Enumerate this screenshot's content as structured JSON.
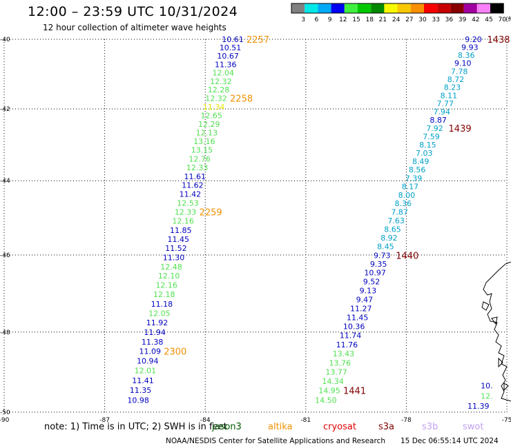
{
  "title": "12:00 – 23:59 UTC 10/31/2024",
  "subtitle": "12 hour collection of altimeter wave heights",
  "colorbar": {
    "unit": "(ft)",
    "ticks": [
      "3",
      "6",
      "9",
      "12",
      "15",
      "18",
      "21",
      "24",
      "27",
      "30",
      "33",
      "36",
      "39",
      "42",
      "45",
      "70"
    ],
    "colors": [
      "#808080",
      "#00e8e8",
      "#00a8f8",
      "#0000f0",
      "#40f040",
      "#00c800",
      "#008800",
      "#f8f800",
      "#f8c800",
      "#f89000",
      "#f80000",
      "#c80000",
      "#880000",
      "#a000a0",
      "#f880f8",
      "#000000"
    ]
  },
  "colors": {
    "dark_blue": "#0000c0",
    "light_green": "#50e050",
    "cyan": "#00a0c8",
    "yellow": "#e8e800",
    "orange": "#f09000",
    "maroon": "#800000",
    "dark_green": "#006000",
    "red": "#e00000",
    "lavender": "#c0a0f0"
  },
  "chart_data": {
    "type": "scatter",
    "xlim": [
      -90,
      -75
    ],
    "ylim": [
      -50,
      -40
    ],
    "x_ticks": [
      "-90",
      "-87",
      "-84",
      "-81",
      "-78",
      "-75"
    ],
    "y_ticks": [
      "-40",
      "-42",
      "-44",
      "-46",
      "-48",
      "-50"
    ],
    "grid": true,
    "tracks": [
      {
        "lon_start": -83.18,
        "lon_end": -86.0,
        "lat_start": -40.0,
        "lat_end": -49.7,
        "values": [
          "10.61",
          "10.51",
          "10.67",
          "11.36",
          "12.04",
          "12.32",
          "12.28",
          "12.32",
          "11.34",
          "12.65",
          "12.29",
          "12.13",
          "13.16",
          "13.15",
          "12.76",
          "12.33",
          "11.61",
          "11.62",
          "11.42",
          "12.53",
          "12.33",
          "12.16",
          "11.85",
          "11.45",
          "11.52",
          "11.30",
          "12.48",
          "12.10",
          "12.16",
          "12.18",
          "11.18",
          "12.05",
          "11.92",
          "11.94",
          "11.38",
          "11.09",
          "10.94",
          "12.01",
          "11.41",
          "11.35",
          "10.98"
        ],
        "colors": [
          "dark_blue",
          "dark_blue",
          "dark_blue",
          "dark_blue",
          "light_green",
          "light_green",
          "light_green",
          "light_green",
          "yellow",
          "light_green",
          "light_green",
          "light_green",
          "light_green",
          "light_green",
          "light_green",
          "light_green",
          "dark_blue",
          "dark_blue",
          "dark_blue",
          "light_green",
          "light_green",
          "light_green",
          "dark_blue",
          "dark_blue",
          "dark_blue",
          "dark_blue",
          "light_green",
          "light_green",
          "light_green",
          "light_green",
          "dark_blue",
          "light_green",
          "dark_blue",
          "dark_blue",
          "dark_blue",
          "dark_blue",
          "dark_blue",
          "light_green",
          "dark_blue",
          "dark_blue",
          "dark_blue"
        ],
        "time_labels": [
          {
            "text": "2257",
            "index": 0
          },
          {
            "text": "2258",
            "index": 7
          },
          {
            "text": "2259",
            "index": 20
          },
          {
            "text": "2300",
            "index": 35
          }
        ],
        "time_color": "orange"
      },
      {
        "lon_start": -76.0,
        "lon_end": -80.4,
        "lat_start": -40.0,
        "lat_end": -49.7,
        "values": [
          "9.20",
          "9.93",
          "8.36",
          "9.10",
          "7.78",
          "8.72",
          "8.23",
          "8.11",
          "7.77",
          "7.94",
          "8.87",
          "7.92",
          "7.59",
          "8.15",
          "7.03",
          "8.49",
          "8.56",
          "7.39",
          "8.17",
          "8.00",
          "8.36",
          "7.87",
          "7.63",
          "8.65",
          "8.92",
          "8.45",
          "9.73",
          "9.35",
          "10.97",
          "9.52",
          "9.13",
          "9.47",
          "11.27",
          "11.45",
          "10.36",
          "11.74",
          "11.76",
          "13.43",
          "13.76",
          "13.77",
          "14.34",
          "14.95",
          "14.50"
        ],
        "colors": [
          "dark_blue",
          "dark_blue",
          "cyan",
          "dark_blue",
          "cyan",
          "cyan",
          "cyan",
          "cyan",
          "cyan",
          "cyan",
          "dark_blue",
          "cyan",
          "cyan",
          "cyan",
          "cyan",
          "cyan",
          "cyan",
          "cyan",
          "cyan",
          "cyan",
          "cyan",
          "cyan",
          "cyan",
          "cyan",
          "cyan",
          "cyan",
          "dark_blue",
          "dark_blue",
          "dark_blue",
          "dark_blue",
          "dark_blue",
          "dark_blue",
          "dark_blue",
          "dark_blue",
          "dark_blue",
          "dark_blue",
          "dark_blue",
          "light_green",
          "light_green",
          "light_green",
          "light_green",
          "light_green",
          "light_green"
        ],
        "time_labels": [
          {
            "text": "1438",
            "index": 0
          },
          {
            "text": "1439",
            "index": 11
          },
          {
            "text": "1440",
            "index": 26
          },
          {
            "text": "1441",
            "index": 41
          }
        ],
        "time_color": "maroon"
      }
    ],
    "edge_values": [
      {
        "text": "10.",
        "lon": -75.6,
        "lat": -49.35,
        "color": "dark_blue"
      },
      {
        "text": "12.",
        "lon": -75.6,
        "lat": -49.6,
        "color": "light_green"
      },
      {
        "text": "11.39",
        "lon": -75.85,
        "lat": -49.85,
        "color": "dark_blue"
      }
    ]
  },
  "note": {
    "prefix": "note:  1) Time is in UTC; 2) SWH is in feet",
    "missions": [
      {
        "name": "jason3",
        "color": "dark_green"
      },
      {
        "name": "altika",
        "color": "orange"
      },
      {
        "name": "cryosat",
        "color": "red"
      },
      {
        "name": "s3a",
        "color": "maroon"
      },
      {
        "name": "s3b",
        "color": "lavender"
      },
      {
        "name": "swot",
        "color": "lavender"
      }
    ]
  },
  "footer": "NOAA/NESDIS Center for Satellite Applications and Research",
  "footer_time": "15 Dec 06:55:14 UTC 2024"
}
